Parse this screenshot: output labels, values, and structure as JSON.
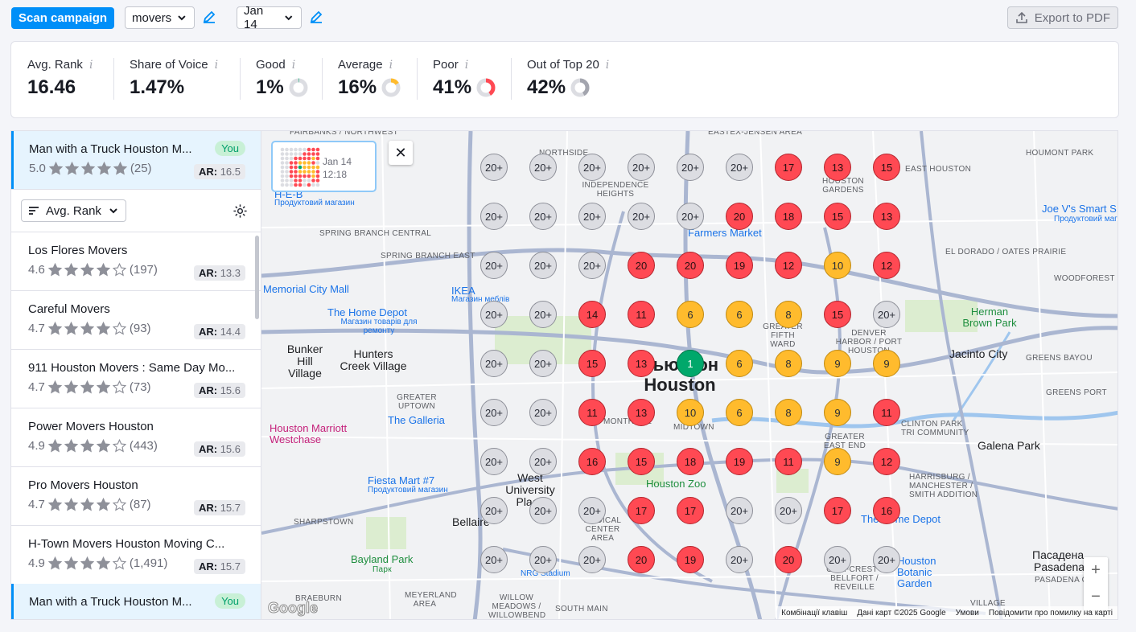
{
  "toolbar": {
    "scan_label": "Scan campaign",
    "keyword": "movers",
    "date": "Jan 14",
    "export_label": "Export to PDF"
  },
  "stats": [
    {
      "label": "Avg. Rank",
      "value": "16.46"
    },
    {
      "label": "Share of Voice",
      "value": "1.47%"
    },
    {
      "label": "Good",
      "value": "1%",
      "pct": 1,
      "color": "#00a86b"
    },
    {
      "label": "Average",
      "value": "16%",
      "pct": 16,
      "color": "#ffbb2d"
    },
    {
      "label": "Poor",
      "value": "41%",
      "pct": 41,
      "color": "#ff4953"
    },
    {
      "label": "Out of Top 20",
      "value": "42%",
      "pct": 42,
      "color": "#a3a5ae"
    }
  ],
  "you_top": {
    "name": "Man with a Truck Houston M...",
    "badge": "You",
    "rating": "5.0",
    "stars": 5,
    "reviews": "(25)",
    "ar_label": "AR:",
    "ar": "16.5"
  },
  "sort": {
    "label": "Avg. Rank"
  },
  "competitors": [
    {
      "name": "Los Flores Movers",
      "rating": "4.6",
      "stars": 4,
      "reviews": "(197)",
      "ar": "13.3"
    },
    {
      "name": "Careful Movers",
      "rating": "4.7",
      "stars": 4,
      "reviews": "(93)",
      "ar": "14.4"
    },
    {
      "name": "911 Houston Movers : Same Day Mo...",
      "rating": "4.7",
      "stars": 4,
      "reviews": "(73)",
      "ar": "15.6"
    },
    {
      "name": "Power Movers Houston",
      "rating": "4.9",
      "stars": 4,
      "reviews": "(443)",
      "ar": "15.6"
    },
    {
      "name": "Pro Movers Houston",
      "rating": "4.7",
      "stars": 4,
      "reviews": "(87)",
      "ar": "15.7"
    },
    {
      "name": "H-Town Movers Houston Moving C...",
      "rating": "4.9",
      "stars": 4,
      "reviews": "(1,491)",
      "ar": "15.7"
    }
  ],
  "you_bottom": {
    "name": "Man with a Truck Houston M...",
    "badge": "You"
  },
  "popup": {
    "date": "Jan 14",
    "time": "12:18"
  },
  "grid": [
    [
      "20+",
      "20+",
      "20+",
      "20+",
      "20+",
      "20+",
      "17",
      "13",
      "15"
    ],
    [
      "20+",
      "20+",
      "20+",
      "20+",
      "20+",
      "20",
      "18",
      "15",
      "13"
    ],
    [
      "20+",
      "20+",
      "20+",
      "20",
      "20",
      "19",
      "12",
      "10",
      "12"
    ],
    [
      "20+",
      "20+",
      "14",
      "11",
      "6",
      "6",
      "8",
      "15",
      "20+"
    ],
    [
      "20+",
      "20+",
      "15",
      "13",
      "1",
      "6",
      "8",
      "9",
      "9"
    ],
    [
      "20+",
      "20+",
      "11",
      "13",
      "10",
      "6",
      "8",
      "9",
      "11"
    ],
    [
      "20+",
      "20+",
      "16",
      "15",
      "18",
      "19",
      "11",
      "9",
      "12"
    ],
    [
      "20+",
      "20+",
      "20+",
      "17",
      "17",
      "20+",
      "20+",
      "17",
      "16"
    ],
    [
      "20+",
      "20+",
      "20+",
      "20",
      "19",
      "20+",
      "20",
      "20+",
      "20+"
    ]
  ],
  "map_labels": {
    "fairbanks": "FAIRBANKS / NORTHWEST",
    "northside": "NORTHSIDE",
    "independence": "INDEPENDENCE HEIGHTS",
    "eastex": "EASTEX-JENSEN AREA",
    "houmont": "HOUMONT PARK",
    "east_houston": "EAST HOUSTON",
    "houston_gardens": "HOUSTON GARDENS",
    "heb": "H-E-B",
    "heb_sub": "Продуктовий магазин",
    "spring_branch_central": "SPRING BRANCH CENTRAL",
    "spring_branch_east": "SPRING BRANCH EAST",
    "farmers_market": "Farmers Market",
    "joes": "Joe V's Smart S...",
    "joes_sub": "Продуктовий магазин",
    "el_dorado": "EL DORADO / OATES PRAIRIE",
    "memorial_city": "Memorial City Mall",
    "ikea": "IKEA",
    "ikea_sub": "Магазин меблів",
    "home_depot": "The Home Depot",
    "home_depot_sub": "Магазин товарів для ремонту",
    "woodforest": "WOODFOREST",
    "herman_brown": "Herman Brown Park",
    "bunker_hill": "Bunker Hill Village",
    "hunters_creek": "Hunters Creek Village",
    "houston_ua": "Хьюстон",
    "houston": "Houston",
    "greater_fifth_ward": "GREATER FIFTH WARD",
    "denver_harbor": "DENVER HARBOR / PORT HOUSTON",
    "jacinto_city": "Jacinto City",
    "greens_bayou": "GREENS BAYOU",
    "greens_port": "GREENS PORT",
    "greater_uptown": "GREATER UPTOWN",
    "galleria": "The Galleria",
    "montrose": "MONTROSE",
    "midtown": "MIDTOWN",
    "greater_east_end": "GREATER EAST END",
    "clinton_park": "CLINTON PARK TRI COMMUNITY",
    "galena_park": "Galena Park",
    "marriott": "Houston Marriott Westchase",
    "fiesta": "Fiesta Mart #7",
    "fiesta_sub": "Продуктовий магазин",
    "west_univ": "West University Place",
    "houston_zoo": "Houston Zoo",
    "harrisburg": "HARRISBURG / MANCHESTER / SMITH ADDITION",
    "sharpstown": "SHARPSTOWN",
    "bellaire": "Bellaire",
    "medical_center": "MEDICAL CENTER AREA",
    "home_depot2": "The Home Depot",
    "bayland": "Bayland Park",
    "bayland_sub": "Парк",
    "nrg_stadium": "NRG Stadium",
    "pasadena_ua": "Пасадена",
    "pasadena": "Pasadena",
    "braeburn": "BRAEBURN",
    "meyerland": "MEYERLAND AREA",
    "willow": "WILLOW MEADOWS / WILLOWBEND AREA",
    "south_main": "SOUTH MAIN",
    "golfcrest": "GOLFCREST / BELLFORT / REVEILLE",
    "hobby": "Houston Botanic Garden",
    "pasadena_oaks": "PASADENA OAKS",
    "village": "VILLAGE",
    "attrib_keys": "Комбінації клавіш",
    "attrib_data": "Дані карт ©2025 Google",
    "attrib_terms": "Умови",
    "attrib_report": "Повідомити про помилку на карті",
    "google": "Google"
  }
}
